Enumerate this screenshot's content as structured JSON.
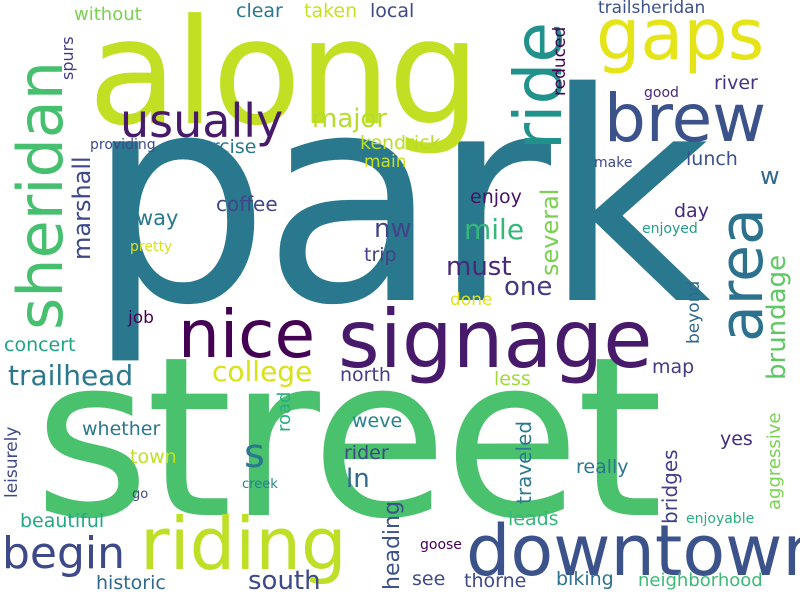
{
  "words": [
    {
      "text": "park",
      "color": "#2a788e"
    },
    {
      "text": "street",
      "color": "#4ac16d"
    },
    {
      "text": "along",
      "color": "#c2df23"
    },
    {
      "text": "signage",
      "color": "#481a6c"
    },
    {
      "text": "downtown",
      "color": "#3b528b"
    },
    {
      "text": "riding",
      "color": "#bddf26"
    },
    {
      "text": "nice",
      "color": "#440154"
    },
    {
      "text": "sheridan",
      "color": "#46c06f"
    },
    {
      "text": "gaps",
      "color": "#e5e419"
    },
    {
      "text": "ride",
      "color": "#21918c"
    },
    {
      "text": "area",
      "color": "#2c728e"
    },
    {
      "text": "brew",
      "color": "#3b528b"
    },
    {
      "text": "usually",
      "color": "#481a6c"
    },
    {
      "text": "begin",
      "color": "#3e4989"
    },
    {
      "text": "trailhead",
      "color": "#2a788e"
    },
    {
      "text": "college",
      "color": "#d8e219"
    },
    {
      "text": "s",
      "color": "#2a788e"
    },
    {
      "text": "brundage",
      "color": "#5ec962"
    },
    {
      "text": "marshall",
      "color": "#3e4989"
    },
    {
      "text": "several",
      "color": "#7ad151"
    },
    {
      "text": "major",
      "color": "#b5de2b"
    },
    {
      "text": "mile",
      "color": "#35b779"
    },
    {
      "text": "nw",
      "color": "#414487"
    },
    {
      "text": "must",
      "color": "#482878"
    },
    {
      "text": "one",
      "color": "#443983"
    },
    {
      "text": "w",
      "color": "#31688e"
    },
    {
      "text": "heading",
      "color": "#3b528b"
    },
    {
      "text": "south",
      "color": "#3e4989"
    },
    {
      "text": "ln",
      "color": "#31688e"
    },
    {
      "text": "traveled",
      "color": "#2a788e"
    },
    {
      "text": "bridges",
      "color": "#424086"
    },
    {
      "text": "aggressive",
      "color": "#7ad151"
    },
    {
      "text": "neighborhood",
      "color": "#3bbb75"
    },
    {
      "text": "beautiful",
      "color": "#22a884"
    },
    {
      "text": "historic",
      "color": "#31688e"
    },
    {
      "text": "without",
      "color": "#7ad151"
    },
    {
      "text": "clear",
      "color": "#2a788e"
    },
    {
      "text": "taken",
      "color": "#c8e020"
    },
    {
      "text": "local",
      "color": "#3e4989"
    },
    {
      "text": "trailsheridan",
      "color": "#3b528b"
    },
    {
      "text": "reduced",
      "color": "#440154"
    },
    {
      "text": "river",
      "color": "#46337e"
    },
    {
      "text": "good",
      "color": "#482878"
    },
    {
      "text": "kendrick",
      "color": "#b8de29"
    },
    {
      "text": "main",
      "color": "#c8e020"
    },
    {
      "text": "exercise",
      "color": "#2a788e"
    },
    {
      "text": "providing",
      "color": "#3e4989"
    },
    {
      "text": "spurs",
      "color": "#443983"
    },
    {
      "text": "lunch",
      "color": "#3b528b"
    },
    {
      "text": "make",
      "color": "#3e4989"
    },
    {
      "text": "coffee",
      "color": "#404688"
    },
    {
      "text": "enjoy",
      "color": "#471365"
    },
    {
      "text": "day",
      "color": "#482878"
    },
    {
      "text": "enjoyed",
      "color": "#1f9e89"
    },
    {
      "text": "way",
      "color": "#2a788e"
    },
    {
      "text": "pretty",
      "color": "#d8e219"
    },
    {
      "text": "trip",
      "color": "#433e85"
    },
    {
      "text": "done",
      "color": "#dde318"
    },
    {
      "text": "job",
      "color": "#440154"
    },
    {
      "text": "concert",
      "color": "#20a486"
    },
    {
      "text": "north",
      "color": "#433e85"
    },
    {
      "text": "less",
      "color": "#a0da39"
    },
    {
      "text": "beyond",
      "color": "#31688e"
    },
    {
      "text": "map",
      "color": "#443983"
    },
    {
      "text": "road",
      "color": "#29af7f"
    },
    {
      "text": "whether",
      "color": "#2a788e"
    },
    {
      "text": "weve",
      "color": "#26828e"
    },
    {
      "text": "town",
      "color": "#c0df25"
    },
    {
      "text": "rider",
      "color": "#404688"
    },
    {
      "text": "leisurely",
      "color": "#3e4989"
    },
    {
      "text": "yes",
      "color": "#472c7a"
    },
    {
      "text": "really",
      "color": "#2a788e"
    },
    {
      "text": "go",
      "color": "#3e4989"
    },
    {
      "text": "creek",
      "color": "#26828e"
    },
    {
      "text": "leads",
      "color": "#35b779"
    },
    {
      "text": "enjoyable",
      "color": "#29af7f"
    },
    {
      "text": "goose",
      "color": "#440154"
    },
    {
      "text": "see",
      "color": "#3e4989"
    },
    {
      "text": "thorne",
      "color": "#3e4989"
    },
    {
      "text": "biking",
      "color": "#2c728e"
    }
  ]
}
